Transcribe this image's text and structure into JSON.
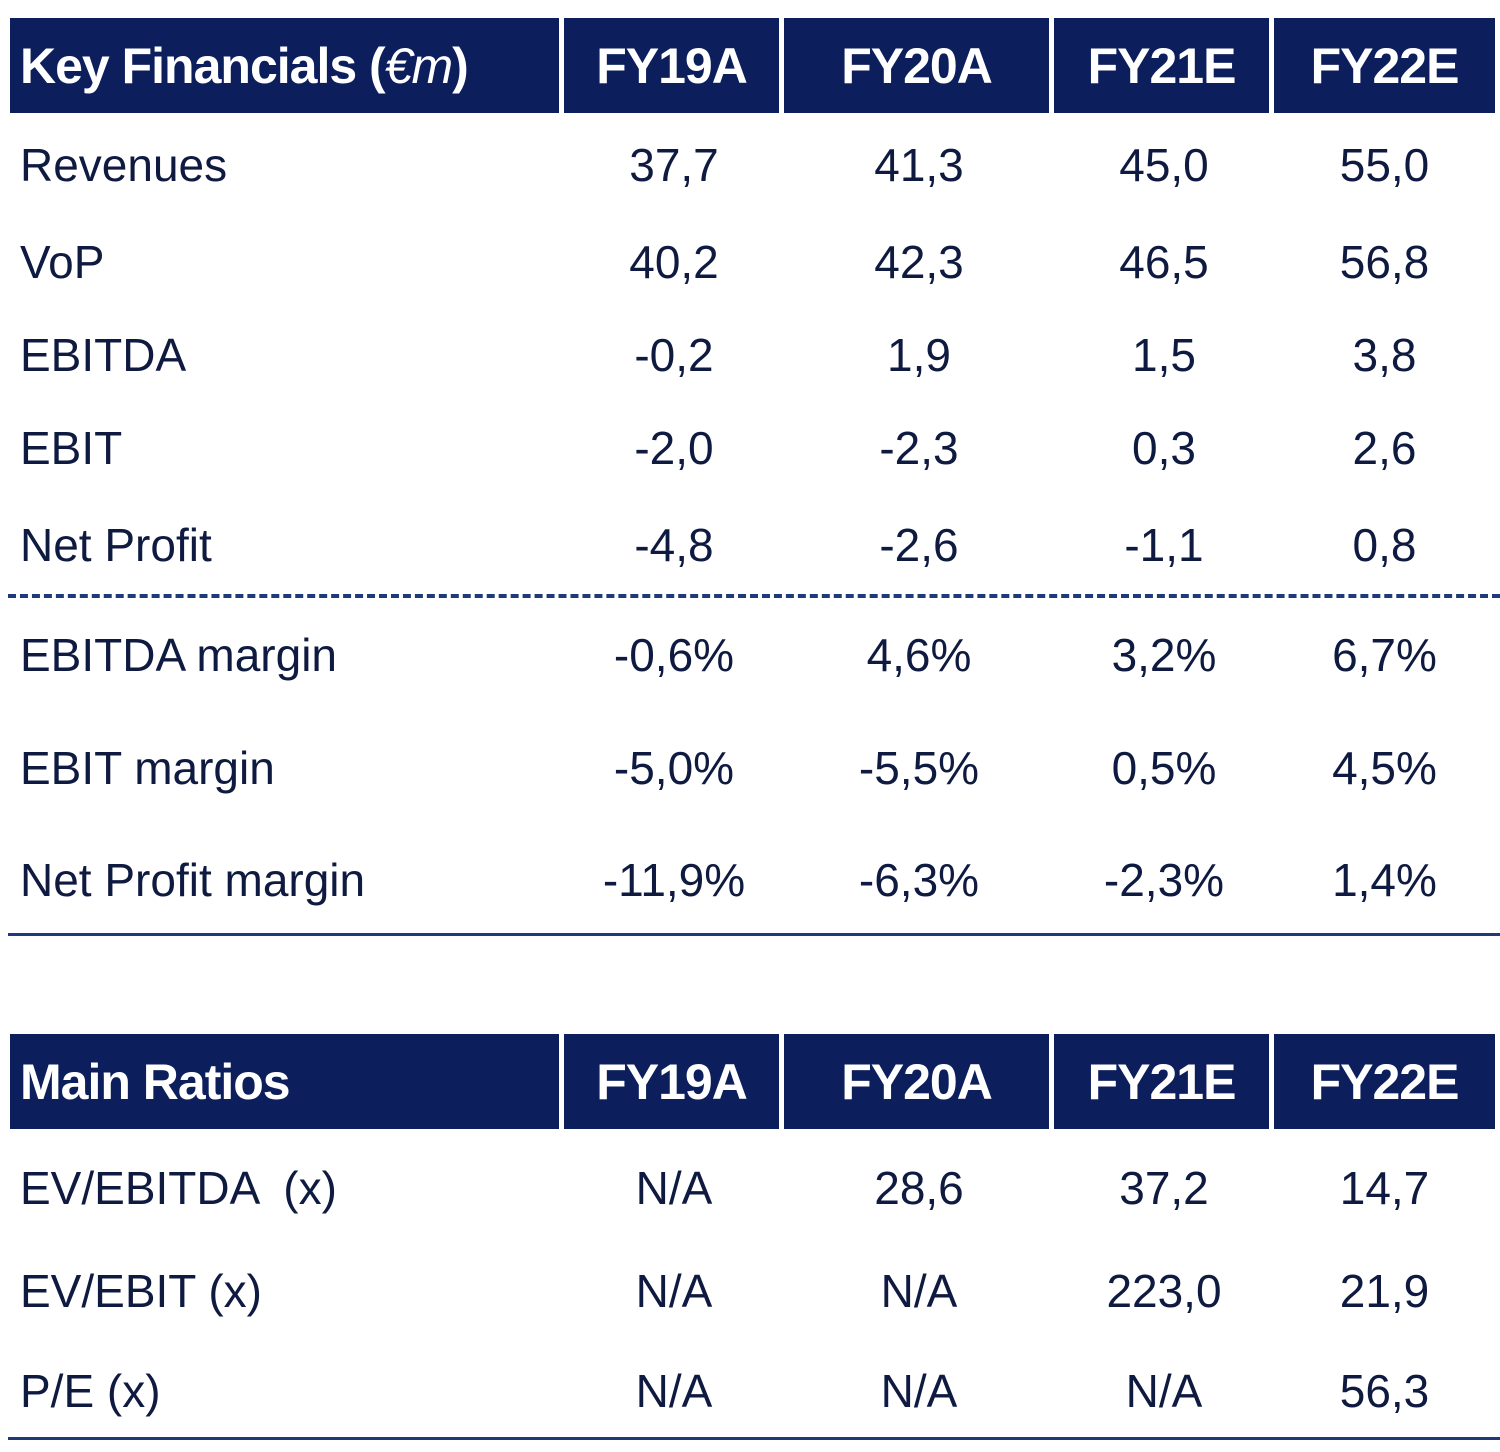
{
  "key_financials": {
    "title": "Key Financials (",
    "unit": "€m",
    "title_close": " )",
    "columns": [
      "FY19A",
      "FY20A",
      "FY21E",
      "FY22E"
    ],
    "rows": [
      {
        "label": "Revenues",
        "values": [
          "37,7",
          "41,3",
          "45,0",
          "55,0"
        ]
      },
      {
        "label": "VoP",
        "values": [
          "40,2",
          "42,3",
          "46,5",
          "56,8"
        ]
      },
      {
        "label": "EBITDA",
        "values": [
          "-0,2",
          "1,9",
          "1,5",
          "3,8"
        ]
      },
      {
        "label": "EBIT",
        "values": [
          "-2,0",
          "-2,3",
          "0,3",
          "2,6"
        ]
      },
      {
        "label": "Net Profit",
        "values": [
          "-4,8",
          "-2,6",
          "-1,1",
          "0,8"
        ]
      }
    ],
    "margin_rows": [
      {
        "label": "EBITDA margin",
        "values": [
          "-0,6%",
          "4,6%",
          "3,2%",
          "6,7%"
        ]
      },
      {
        "label": "EBIT margin",
        "values": [
          "-5,0%",
          "-5,5%",
          "0,5%",
          "4,5%"
        ]
      },
      {
        "label": "Net Profit margin",
        "values": [
          "-11,9%",
          "-6,3%",
          "-2,3%",
          "1,4%"
        ]
      }
    ]
  },
  "main_ratios": {
    "title": "Main Ratios",
    "columns": [
      "FY19A",
      "FY20A",
      "FY21E",
      "FY22E"
    ],
    "rows": [
      {
        "label": "EV/EBITDA  (x)",
        "values": [
          "N/A",
          "28,6",
          "37,2",
          "14,7"
        ]
      },
      {
        "label": "EV/EBIT (x)",
        "values": [
          "N/A",
          "N/A",
          "223,0",
          "21,9"
        ]
      },
      {
        "label": "P/E (x)",
        "values": [
          "N/A",
          "N/A",
          "N/A",
          "56,3"
        ]
      }
    ]
  }
}
